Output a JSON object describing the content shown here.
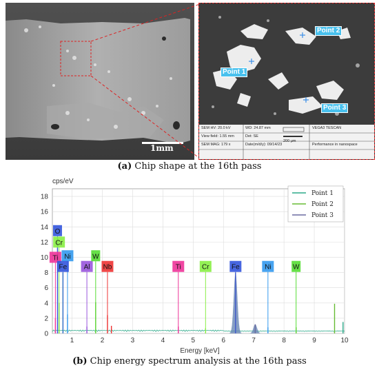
{
  "panel_a": {
    "caption_letter": "(a)",
    "caption_text": " Chip shape at the 16th pass",
    "scale_bar": "1mm",
    "points": [
      "Point 1",
      "Point 2",
      "Point 3"
    ],
    "sem_info": {
      "hv": "SEM HV: 20.0 kV",
      "wd": "WD: 24.87 mm",
      "brand": "VEGA3 TESCAN",
      "view_field": "View field: 1.55 mm",
      "det": "Det: SE",
      "scale": "200 μm",
      "mag": "SEM MAG: 179 x",
      "date": "Date(m/d/y): 09/14/23",
      "perf": "Performance in nanospace"
    }
  },
  "panel_b": {
    "caption_letter": "(b)",
    "caption_text": " Chip energy spectrum analysis at the 16th pass"
  },
  "chart_data": {
    "type": "line",
    "ylabel": "cps/eV",
    "xlabel": "Energy [keV]",
    "xlim": [
      0.35,
      10
    ],
    "ylim": [
      0,
      19
    ],
    "x_ticks": [
      1,
      2,
      3,
      4,
      5,
      6,
      7,
      8,
      9,
      10
    ],
    "y_ticks": [
      0,
      2,
      4,
      6,
      8,
      10,
      12,
      14,
      16,
      18
    ],
    "grid": true,
    "legend_position": "top-right",
    "series": [
      {
        "name": "Point 1",
        "color": "#2aa888"
      },
      {
        "name": "Point 2",
        "color": "#66bb33"
      },
      {
        "name": "Point 3",
        "color": "#6a6aa0"
      }
    ],
    "element_markers": [
      {
        "label": "O",
        "x": 0.52,
        "y": 13.5,
        "color": "#3355dd"
      },
      {
        "label": "Cr",
        "x": 0.57,
        "y": 12.0,
        "color": "#88ee44"
      },
      {
        "label": "Ni",
        "x": 0.85,
        "y": 10.2,
        "color": "#3399ee"
      },
      {
        "label": "Ti",
        "x": 0.45,
        "y": 10.0,
        "color": "#ee3399"
      },
      {
        "label": "Fe",
        "x": 0.7,
        "y": 8.8,
        "color": "#3355dd"
      },
      {
        "label": "Al",
        "x": 1.49,
        "y": 8.8,
        "color": "#9955dd"
      },
      {
        "label": "W",
        "x": 1.78,
        "y": 10.2,
        "color": "#55dd33"
      },
      {
        "label": "Nb",
        "x": 2.17,
        "y": 8.8,
        "color": "#ee3333"
      },
      {
        "label": "Ti",
        "x": 4.51,
        "y": 8.8,
        "color": "#ee3399"
      },
      {
        "label": "Cr",
        "x": 5.41,
        "y": 8.8,
        "color": "#88ee44"
      },
      {
        "label": "Fe",
        "x": 6.4,
        "y": 8.8,
        "color": "#3355dd"
      },
      {
        "label": "Ni",
        "x": 7.47,
        "y": 8.8,
        "color": "#3399ee"
      },
      {
        "label": "W",
        "x": 8.4,
        "y": 8.8,
        "color": "#55dd33"
      }
    ],
    "peaks": [
      {
        "x": 0.45,
        "y": 2.0,
        "color": "#ee3399"
      },
      {
        "x": 0.52,
        "y": 12.5,
        "color": "#3355dd"
      },
      {
        "x": 0.57,
        "y": 4.0,
        "color": "#66bb33"
      },
      {
        "x": 0.7,
        "y": 8.0,
        "color": "#2aa888"
      },
      {
        "x": 0.85,
        "y": 2.5,
        "color": "#3399ee"
      },
      {
        "x": 1.49,
        "y": 0.9,
        "color": "#9955dd"
      },
      {
        "x": 1.78,
        "y": 4.1,
        "color": "#66bb33"
      },
      {
        "x": 2.17,
        "y": 2.4,
        "color": "#ee3333"
      },
      {
        "x": 2.3,
        "y": 1.0,
        "color": "#ee3333"
      },
      {
        "x": 4.51,
        "y": 0.9,
        "color": "#ee3399"
      },
      {
        "x": 5.41,
        "y": 0.7,
        "color": "#88ee44"
      },
      {
        "x": 6.4,
        "y": 8.0,
        "color": "#6a6aa0"
      },
      {
        "x": 7.05,
        "y": 1.2,
        "color": "#6a6aa0"
      },
      {
        "x": 7.47,
        "y": 0.8,
        "color": "#3399ee"
      },
      {
        "x": 8.4,
        "y": 0.8,
        "color": "#66bb33"
      },
      {
        "x": 9.67,
        "y": 3.9,
        "color": "#66bb33"
      },
      {
        "x": 9.95,
        "y": 1.5,
        "color": "#2aa888"
      }
    ]
  }
}
